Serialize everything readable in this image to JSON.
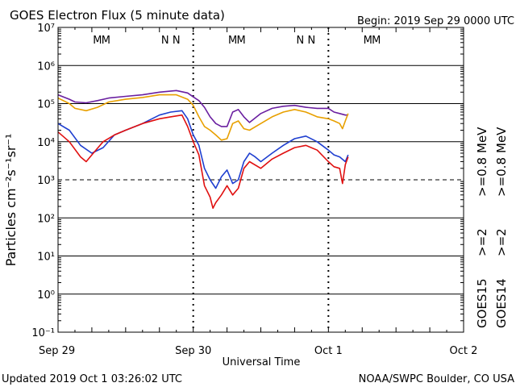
{
  "header": {
    "title": "GOES Electron Flux (5 minute data)",
    "begin": "Begin: 2019 Sep 29 0000 UTC"
  },
  "footer": {
    "updated": "Updated 2019 Oct  1 03:26:02 UTC",
    "credit": "NOAA/SWPC Boulder, CO USA"
  },
  "colors": {
    "goes15_e2": "#1f3fd0",
    "goes14_e2": "#e01010",
    "goes15_e08": "#6a1fa0",
    "goes14_e08": "#e8a000",
    "marker_m": "#d01010",
    "marker_n_first": "#d01010",
    "marker_n_second": "#1f3fd0"
  },
  "legend": {
    "goes15_label": "GOES15",
    "goes14_label": "GOES14",
    "goes15_e2": ">=2",
    "goes14_e2": ">=2",
    "goes15_e08": ">=0.8",
    "goes14_e08": ">=0.8",
    "unit": "MeV"
  },
  "chart_data": {
    "type": "line",
    "title": "GOES Electron Flux (5 minute data)",
    "xlabel": "Universal Time",
    "ylabel": "Particles cm⁻²s⁻¹sr⁻¹",
    "x_unit": "hours since 2019 Sep 29 0000 UTC",
    "xlim": [
      0,
      72
    ],
    "x_ticks": [
      {
        "x": 0,
        "label": "Sep 29"
      },
      {
        "x": 24,
        "label": "Sep 30"
      },
      {
        "x": 48,
        "label": "Oct 1"
      },
      {
        "x": 72,
        "label": "Oct 2"
      }
    ],
    "y_scale": "log",
    "ylim": [
      0.1,
      10000000
    ],
    "y_ticks": [
      {
        "exp": -1,
        "label": "10⁻¹"
      },
      {
        "exp": 0,
        "label": "10⁰"
      },
      {
        "exp": 1,
        "label": "10¹"
      },
      {
        "exp": 2,
        "label": "10²"
      },
      {
        "exp": 3,
        "label": "10³"
      },
      {
        "exp": 4,
        "label": "10⁴"
      },
      {
        "exp": 5,
        "label": "10⁵"
      },
      {
        "exp": 6,
        "label": "10⁶"
      },
      {
        "exp": 7,
        "label": "10⁷"
      }
    ],
    "threshold": {
      "value": 1000,
      "style": "dashed"
    },
    "markers": [
      {
        "x": 7,
        "label": "M",
        "group": "m1",
        "color_key": "marker_m"
      },
      {
        "x": 8.5,
        "label": "M",
        "group": "m2",
        "color_key": "marker_n_second"
      },
      {
        "x": 19,
        "label": "N",
        "group": "n1",
        "color_key": "marker_n_first"
      },
      {
        "x": 21,
        "label": "N",
        "group": "n2",
        "color_key": "marker_n_second"
      },
      {
        "x": 31,
        "label": "M",
        "group": "m1",
        "color_key": "marker_m"
      },
      {
        "x": 32.5,
        "label": "M",
        "group": "m2",
        "color_key": "marker_n_second"
      },
      {
        "x": 43,
        "label": "N",
        "group": "n1",
        "color_key": "marker_n_first"
      },
      {
        "x": 45,
        "label": "N",
        "group": "n2",
        "color_key": "marker_n_second"
      },
      {
        "x": 55,
        "label": "M",
        "group": "m1",
        "color_key": "marker_m"
      },
      {
        "x": 56.5,
        "label": "M",
        "group": "m2",
        "color_key": "marker_n_second"
      }
    ],
    "series": [
      {
        "name": "GOES15 >=0.8 MeV",
        "color_key": "goes15_e08",
        "x": [
          0,
          2,
          3,
          5,
          7,
          9,
          12,
          15,
          18,
          21,
          23,
          24,
          25,
          26,
          27,
          28,
          29,
          30,
          31,
          32,
          33,
          34,
          36,
          38,
          40,
          42,
          44,
          46,
          48,
          49,
          50,
          51,
          51.5
        ],
        "y": [
          170000,
          130000,
          110000,
          105000,
          120000,
          140000,
          155000,
          170000,
          200000,
          220000,
          190000,
          150000,
          120000,
          80000,
          45000,
          30000,
          25000,
          25000,
          60000,
          70000,
          45000,
          32000,
          55000,
          75000,
          85000,
          90000,
          80000,
          75000,
          75000,
          60000,
          55000,
          50000,
          50000
        ]
      },
      {
        "name": "GOES14 >=0.8 MeV",
        "color_key": "goes14_e08",
        "x": [
          0,
          2,
          3,
          5,
          7,
          9,
          12,
          15,
          18,
          21,
          23,
          24,
          25,
          26,
          27,
          28,
          29,
          30,
          31,
          32,
          33,
          34,
          36,
          38,
          40,
          42,
          44,
          46,
          48,
          49,
          50,
          50.5,
          51,
          51.5
        ],
        "y": [
          140000,
          100000,
          75000,
          65000,
          80000,
          110000,
          130000,
          145000,
          170000,
          170000,
          130000,
          90000,
          45000,
          25000,
          20000,
          15000,
          11000,
          12000,
          30000,
          35000,
          22000,
          20000,
          30000,
          45000,
          60000,
          70000,
          60000,
          45000,
          40000,
          35000,
          30000,
          22000,
          35000,
          55000
        ]
      },
      {
        "name": "GOES15 >=2 MeV",
        "color_key": "goes15_e2",
        "x": [
          0,
          2,
          4,
          6,
          8,
          10,
          12,
          15,
          18,
          20,
          22,
          23,
          24,
          25,
          26,
          27,
          28,
          29,
          30,
          31,
          32,
          33,
          34,
          35,
          36,
          38,
          40,
          42,
          44,
          46,
          48,
          49,
          50,
          51,
          51.5
        ],
        "y": [
          30000,
          20000,
          8000,
          5000,
          7000,
          15000,
          20000,
          30000,
          50000,
          60000,
          65000,
          40000,
          15000,
          8000,
          2000,
          1000,
          600,
          1200,
          1800,
          800,
          1000,
          3000,
          5000,
          4000,
          3000,
          5000,
          8000,
          12000,
          14000,
          10000,
          6000,
          4500,
          4000,
          3000,
          4500
        ]
      },
      {
        "name": "GOES14 >=2 MeV",
        "color_key": "goes14_e2",
        "x": [
          0,
          2,
          4,
          5,
          6,
          8,
          10,
          12,
          15,
          18,
          20,
          22,
          23,
          24,
          25,
          26,
          27,
          27.5,
          28,
          29,
          30,
          31,
          32,
          33,
          34,
          36,
          38,
          40,
          42,
          44,
          46,
          48,
          49,
          50,
          50.5,
          51,
          51.5
        ],
        "y": [
          18000,
          10000,
          4000,
          3000,
          4500,
          10000,
          15000,
          20000,
          30000,
          40000,
          45000,
          50000,
          25000,
          10000,
          4500,
          700,
          350,
          180,
          250,
          400,
          700,
          400,
          600,
          2000,
          3000,
          2000,
          3500,
          5000,
          7000,
          8000,
          6000,
          3000,
          2200,
          2000,
          800,
          2500,
          4000
        ]
      }
    ]
  }
}
